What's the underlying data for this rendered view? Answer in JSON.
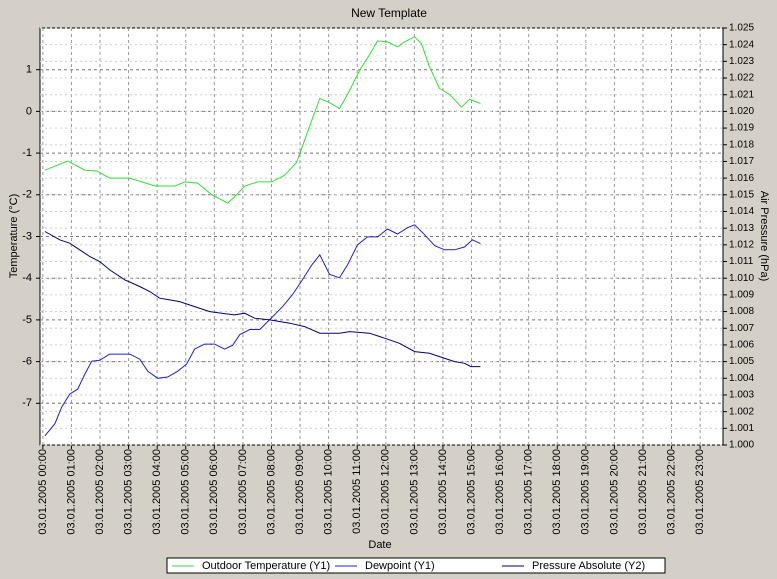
{
  "chart_data": {
    "type": "line",
    "title": "New Template",
    "xlabel": "Date",
    "ylabel": "Temperature (°C)",
    "y2label": "Air Pressure (hPa)",
    "xlim": [
      -0.1,
      23.8
    ],
    "xticks": [
      {
        "value": 0,
        "label": "03.01.2005 00:00"
      },
      {
        "value": 1,
        "label": "03.01.2005 01:00"
      },
      {
        "value": 2,
        "label": "03.01.2005 02:00"
      },
      {
        "value": 3,
        "label": "03.01.2005 03:00"
      },
      {
        "value": 4,
        "label": "03.01.2005 04:00"
      },
      {
        "value": 5,
        "label": "03.01.2005 05:00"
      },
      {
        "value": 6,
        "label": "03.01.2005 06:00"
      },
      {
        "value": 7,
        "label": "03.01.2005 07:00"
      },
      {
        "value": 8,
        "label": "03.01.2005 08:00"
      },
      {
        "value": 9,
        "label": "03.01.2005 09:00"
      },
      {
        "value": 10,
        "label": "03.01.2005 10:00"
      },
      {
        "value": 11,
        "label": "03.01.2005 11:00"
      },
      {
        "value": 12,
        "label": "03.01.2005 12:00"
      },
      {
        "value": 13,
        "label": "03.01.2005 13:00"
      },
      {
        "value": 14,
        "label": "03.01.2005 14:00"
      },
      {
        "value": 15,
        "label": "03.01.2005 15:00"
      },
      {
        "value": 16,
        "label": "03.01.2005 16:00"
      },
      {
        "value": 17,
        "label": "03.01.2005 17:00"
      },
      {
        "value": 18,
        "label": "03.01.2005 18:00"
      },
      {
        "value": 19,
        "label": "03.01.2005 19:00"
      },
      {
        "value": 20,
        "label": "03.01.2005 20:00"
      },
      {
        "value": 21,
        "label": "03.01.2005 21:00"
      },
      {
        "value": 22,
        "label": "03.01.2005 22:00"
      },
      {
        "value": 23,
        "label": "03.01.2005 23:00"
      }
    ],
    "ylim": [
      -8,
      2
    ],
    "yticks": [
      -7,
      -6,
      -5,
      -4,
      -3,
      -2,
      -1,
      0,
      1
    ],
    "y2lim": [
      1.0,
      1.025
    ],
    "y2ticks": [
      {
        "value": 1.0,
        "label": "1.000"
      },
      {
        "value": 1.001,
        "label": "1.001"
      },
      {
        "value": 1.002,
        "label": "1.002"
      },
      {
        "value": 1.003,
        "label": "1.003"
      },
      {
        "value": 1.004,
        "label": "1.004"
      },
      {
        "value": 1.005,
        "label": "1.005"
      },
      {
        "value": 1.006,
        "label": "1.006"
      },
      {
        "value": 1.007,
        "label": "1.007"
      },
      {
        "value": 1.008,
        "label": "1.008"
      },
      {
        "value": 1.009,
        "label": "1.009"
      },
      {
        "value": 1.01,
        "label": "1.010"
      },
      {
        "value": 1.011,
        "label": "1.011"
      },
      {
        "value": 1.012,
        "label": "1.012"
      },
      {
        "value": 1.013,
        "label": "1.013"
      },
      {
        "value": 1.014,
        "label": "1.014"
      },
      {
        "value": 1.015,
        "label": "1.015"
      },
      {
        "value": 1.016,
        "label": "1.016"
      },
      {
        "value": 1.017,
        "label": "1.017"
      },
      {
        "value": 1.018,
        "label": "1.018"
      },
      {
        "value": 1.019,
        "label": "1.019"
      },
      {
        "value": 1.02,
        "label": "1.020"
      },
      {
        "value": 1.021,
        "label": "1.021"
      },
      {
        "value": 1.022,
        "label": "1.022"
      },
      {
        "value": 1.023,
        "label": "1.023"
      },
      {
        "value": 1.024,
        "label": "1.024"
      },
      {
        "value": 1.025,
        "label": "1.025"
      }
    ],
    "grid": true,
    "series": [
      {
        "name": "Outdoor Temperature (Y1)",
        "color": "#33e033",
        "x": [
          0.07,
          0.87,
          1.47,
          1.89,
          2.34,
          3.04,
          3.92,
          4.62,
          4.97,
          5.42,
          5.91,
          6.47,
          6.78,
          7.06,
          7.52,
          8.01,
          8.46,
          8.88,
          9.16,
          9.41,
          9.69,
          10.03,
          10.38,
          10.73,
          11.08,
          11.43,
          11.71,
          12.06,
          12.41,
          12.66,
          13.01,
          13.25,
          13.53,
          13.88,
          14.23,
          14.65,
          14.93,
          15.31
        ],
        "values": [
          -1.41,
          -1.19,
          -1.41,
          -1.43,
          -1.6,
          -1.6,
          -1.79,
          -1.79,
          -1.69,
          -1.72,
          -2.0,
          -2.2,
          -2.0,
          -1.79,
          -1.69,
          -1.69,
          -1.53,
          -1.22,
          -0.69,
          -0.21,
          0.31,
          0.21,
          0.07,
          0.5,
          0.98,
          1.36,
          1.69,
          1.67,
          1.55,
          1.67,
          1.79,
          1.62,
          1.07,
          0.55,
          0.41,
          0.1,
          0.29,
          0.19
        ]
      },
      {
        "name": "Dewpoint (Y1)",
        "color": "#2020d0",
        "x": [
          0.07,
          0.42,
          0.66,
          0.94,
          1.22,
          1.47,
          1.71,
          1.99,
          2.34,
          3.04,
          3.39,
          3.67,
          4.02,
          4.37,
          4.72,
          5.03,
          5.31,
          5.66,
          6.01,
          6.36,
          6.64,
          6.89,
          7.24,
          7.59,
          7.94,
          8.39,
          8.74,
          9.09,
          9.41,
          9.69,
          10.03,
          10.38,
          10.66,
          11.01,
          11.36,
          11.71,
          12.06,
          12.41,
          12.76,
          13.01,
          13.36,
          13.71,
          14.06,
          14.41,
          14.76,
          15.03,
          15.31
        ],
        "values": [
          -7.78,
          -7.49,
          -7.09,
          -6.78,
          -6.66,
          -6.3,
          -5.99,
          -5.97,
          -5.82,
          -5.82,
          -5.94,
          -6.23,
          -6.4,
          -6.37,
          -6.23,
          -6.06,
          -5.7,
          -5.58,
          -5.58,
          -5.7,
          -5.61,
          -5.35,
          -5.23,
          -5.23,
          -4.99,
          -4.68,
          -4.39,
          -4.03,
          -3.68,
          -3.44,
          -3.91,
          -3.99,
          -3.68,
          -3.2,
          -3.01,
          -3.01,
          -2.82,
          -2.94,
          -2.79,
          -2.72,
          -2.96,
          -3.22,
          -3.32,
          -3.32,
          -3.25,
          -3.08,
          -3.17
        ]
      },
      {
        "name": "Pressure Absolute (Y2)",
        "color": "#000080",
        "axis": "y2",
        "x": [
          0.07,
          0.59,
          0.94,
          1.29,
          1.64,
          1.99,
          2.34,
          2.87,
          3.39,
          3.74,
          4.09,
          4.44,
          4.79,
          5.31,
          5.84,
          6.26,
          6.71,
          7.06,
          7.41,
          7.94,
          8.64,
          9.16,
          9.69,
          10.38,
          10.73,
          11.43,
          11.96,
          12.48,
          13.01,
          13.53,
          13.88,
          14.41,
          14.76,
          14.97,
          15.31
        ],
        "values": [
          1.0128,
          1.0123,
          1.0121,
          1.0117,
          1.0113,
          1.011,
          1.0105,
          1.0099,
          1.0095,
          1.0092,
          1.0088,
          1.0087,
          1.0086,
          1.0083,
          1.008,
          1.0079,
          1.0078,
          1.0079,
          1.0076,
          1.0075,
          1.0073,
          1.0071,
          1.0067,
          1.0067,
          1.0068,
          1.0067,
          1.0064,
          1.0061,
          1.0056,
          1.0055,
          1.0053,
          1.005,
          1.0049,
          1.0047,
          1.0047
        ]
      }
    ]
  }
}
